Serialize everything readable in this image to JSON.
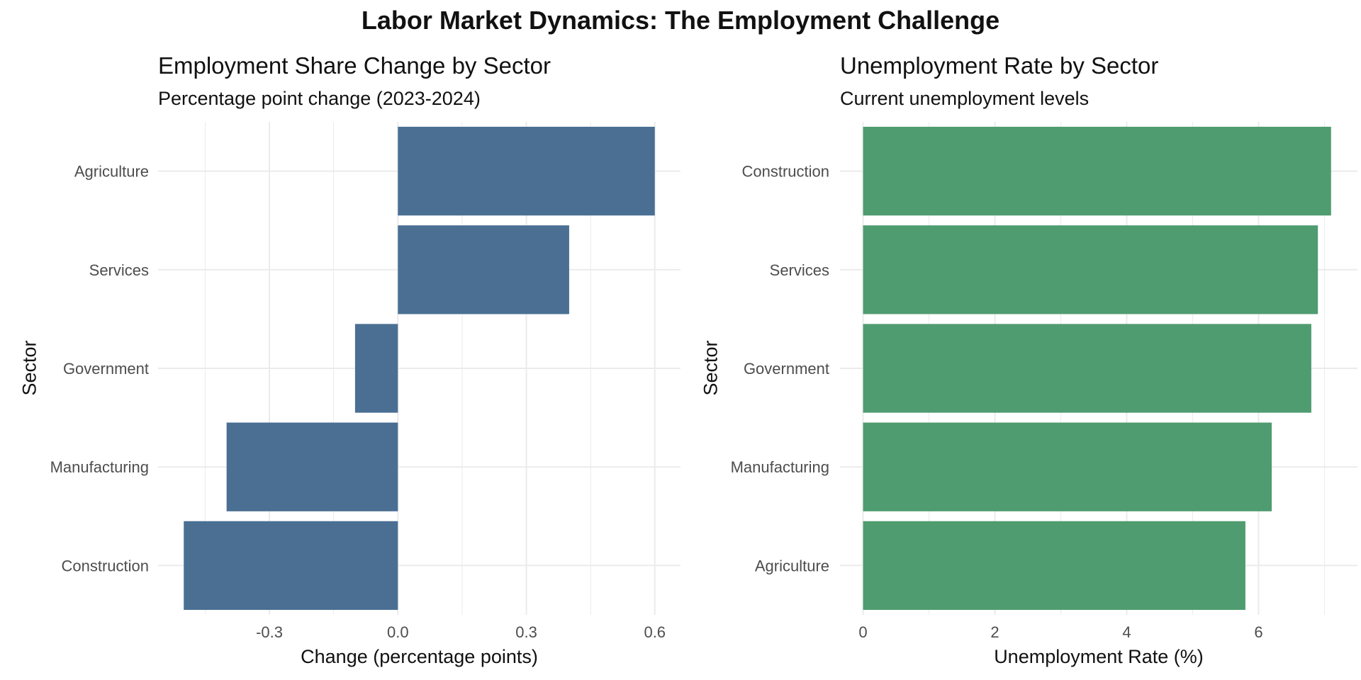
{
  "title": "Labor Market Dynamics: The Employment Challenge",
  "colors": {
    "left_bar": "#4a6f93",
    "right_bar": "#4f9c70",
    "grid": "#ebebeb",
    "tick_text": "#4d4d4d"
  },
  "chart_data": [
    {
      "type": "bar",
      "orientation": "horizontal",
      "title": "Employment Share Change by Sector",
      "subtitle": "Percentage point change (2023-2024)",
      "xlabel": "Change (percentage points)",
      "ylabel": "Sector",
      "categories": [
        "Agriculture",
        "Services",
        "Government",
        "Manufacturing",
        "Construction"
      ],
      "values": [
        0.6,
        0.4,
        -0.1,
        -0.4,
        -0.5
      ],
      "xlim": [
        -0.56,
        0.66
      ],
      "xticks": [
        -0.3,
        0.0,
        0.3,
        0.6
      ],
      "xtick_labels": [
        "-0.3",
        "0.0",
        "0.3",
        "0.6"
      ],
      "grid": true
    },
    {
      "type": "bar",
      "orientation": "horizontal",
      "title": "Unemployment Rate by Sector",
      "subtitle": "Current unemployment levels",
      "xlabel": "Unemployment Rate (%)",
      "ylabel": "Sector",
      "categories": [
        "Construction",
        "Services",
        "Government",
        "Manufacturing",
        "Agriculture"
      ],
      "values": [
        7.1,
        6.9,
        6.8,
        6.2,
        5.8
      ],
      "xlim": [
        -0.35,
        7.5
      ],
      "xticks": [
        0,
        2,
        4,
        6
      ],
      "xtick_labels": [
        "0",
        "2",
        "4",
        "6"
      ],
      "grid": true
    }
  ]
}
